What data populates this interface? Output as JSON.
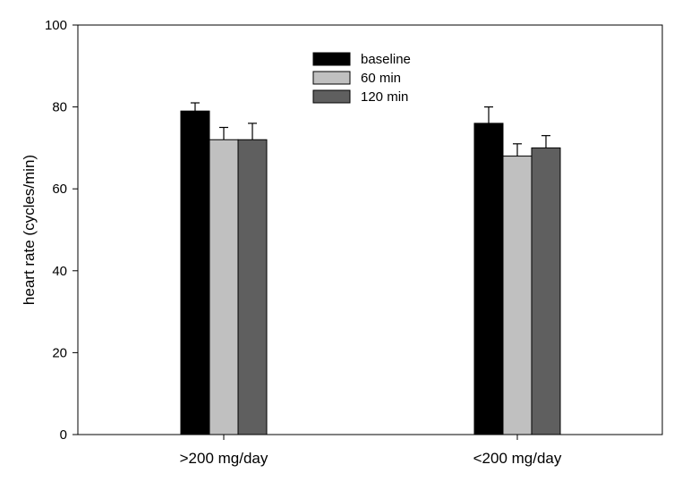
{
  "chart_data": {
    "type": "bar",
    "ylabel": "heart rate (cycles/min)",
    "xlabel": "",
    "ylim": [
      0,
      100
    ],
    "yticks": [
      0,
      20,
      40,
      60,
      80,
      100
    ],
    "categories": [
      ">200 mg/day",
      "<200 mg/day"
    ],
    "series": [
      {
        "name": "baseline",
        "color": "#000000",
        "values": [
          79,
          76
        ],
        "errors": [
          2,
          4
        ]
      },
      {
        "name": "60 min",
        "color": "#c0c0c0",
        "values": [
          72,
          68
        ],
        "errors": [
          3,
          3
        ]
      },
      {
        "name": "120 min",
        "color": "#5f5f5f",
        "values": [
          72,
          70
        ],
        "errors": [
          4,
          3
        ]
      }
    ],
    "legend_position": "top-center",
    "grid": false
  }
}
